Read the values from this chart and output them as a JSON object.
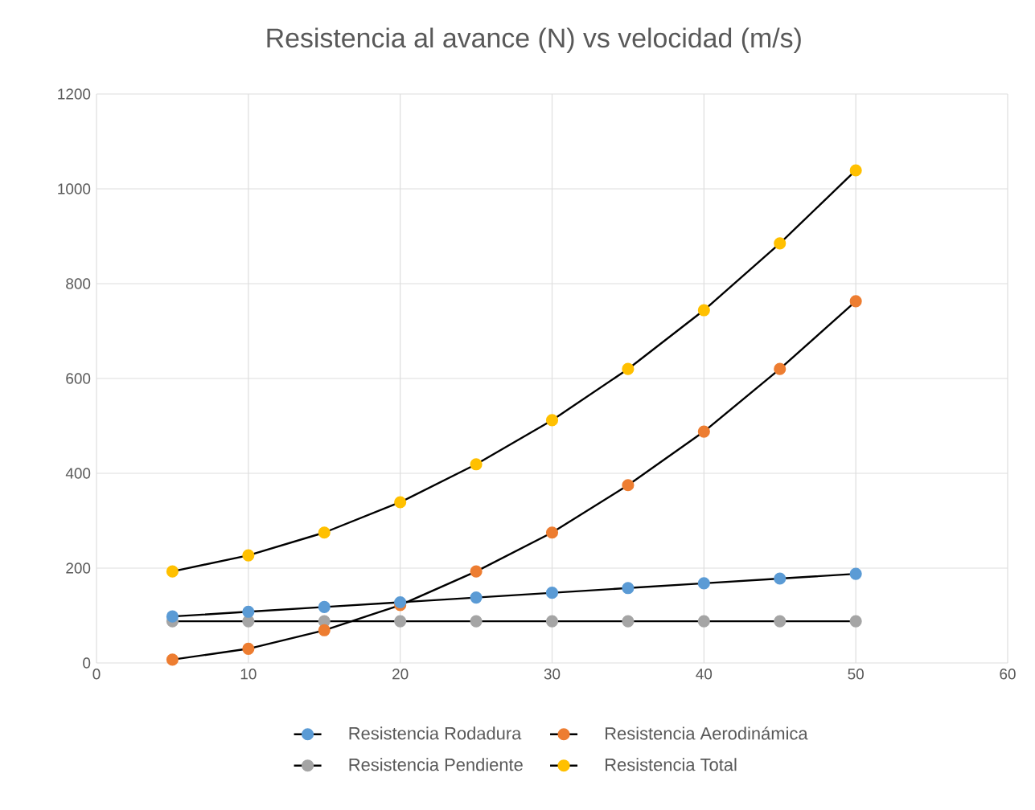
{
  "chart_data": {
    "type": "line",
    "title": "Resistencia al avance (N) vs velocidad (m/s)",
    "x": [
      5,
      10,
      15,
      20,
      25,
      30,
      35,
      40,
      45,
      50
    ],
    "series": [
      {
        "name": "Resistencia Rodadura",
        "color": "#5b9bd5",
        "values": [
          98,
          108,
          118,
          128,
          138,
          148,
          158,
          168,
          178,
          188
        ]
      },
      {
        "name": "Resistencia Aerodinámica",
        "color": "#ed7d31",
        "values": [
          7,
          30,
          69,
          122,
          193,
          275,
          375,
          488,
          620,
          763
        ]
      },
      {
        "name": "Resistencia Pendiente",
        "color": "#a5a5a5",
        "values": [
          88,
          88,
          88,
          88,
          88,
          88,
          88,
          88,
          88,
          88
        ]
      },
      {
        "name": "Resistencia Total",
        "color": "#ffc000",
        "values": [
          193,
          227,
          275,
          339,
          419,
          512,
          620,
          744,
          885,
          1039
        ]
      }
    ],
    "xlim": [
      0,
      60
    ],
    "xticks": [
      0,
      10,
      20,
      30,
      40,
      50,
      60
    ],
    "ylim": [
      0,
      1200
    ],
    "yticks": [
      0,
      200,
      400,
      600,
      800,
      1000,
      1200
    ],
    "grid": true,
    "legend": "bottom",
    "marker": "circle",
    "line_style": "solid"
  }
}
